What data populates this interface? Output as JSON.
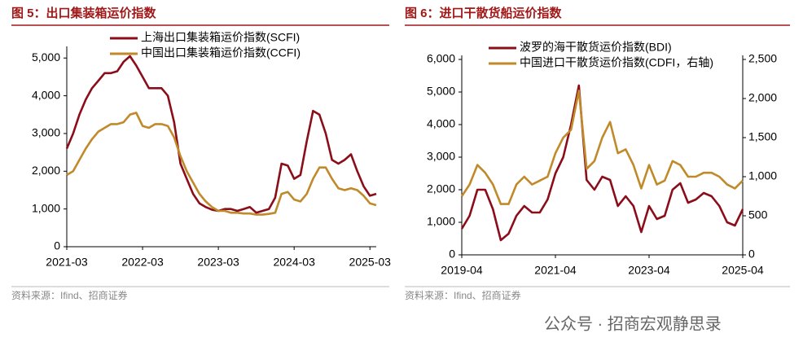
{
  "chart_data": [
    {
      "type": "line",
      "title": "图 5：出口集装箱运价指数",
      "source": "资料来源：Ifind、招商证券",
      "categories": [
        "2021-03",
        null,
        null,
        null,
        null,
        null,
        null,
        null,
        null,
        null,
        null,
        null,
        "2022-03",
        null,
        null,
        null,
        null,
        null,
        null,
        null,
        null,
        null,
        null,
        null,
        "2023-03",
        null,
        null,
        null,
        null,
        null,
        null,
        null,
        null,
        null,
        null,
        null,
        "2024-03",
        null,
        null,
        null,
        null,
        null,
        null,
        null,
        null,
        null,
        null,
        null,
        "2025-03",
        null
      ],
      "series": [
        {
          "name": "上海出口集装箱运价指数(SCFI)",
          "color": "#8b0d1a",
          "values": [
            2600,
            3000,
            3500,
            3900,
            4200,
            4400,
            4600,
            4600,
            4650,
            4900,
            5050,
            4800,
            4500,
            4200,
            4200,
            4200,
            4000,
            3300,
            2200,
            1800,
            1400,
            1150,
            1050,
            980,
            950,
            1000,
            1000,
            950,
            1000,
            1050,
            900,
            950,
            1000,
            1300,
            2200,
            2150,
            1800,
            1900,
            2800,
            3600,
            3500,
            3000,
            2300,
            2200,
            2300,
            2450,
            2000,
            1600,
            1350,
            1400
          ]
        },
        {
          "name": "中国出口集装箱运价指数(CCFI)",
          "color": "#c08a2a",
          "values": [
            1900,
            2000,
            2300,
            2600,
            2850,
            3050,
            3150,
            3250,
            3250,
            3300,
            3500,
            3550,
            3200,
            3150,
            3250,
            3250,
            3200,
            2900,
            2400,
            2000,
            1700,
            1400,
            1200,
            1050,
            950,
            950,
            900,
            900,
            880,
            880,
            850,
            850,
            870,
            900,
            1400,
            1450,
            1250,
            1200,
            1400,
            1800,
            2100,
            2100,
            1800,
            1550,
            1500,
            1550,
            1500,
            1350,
            1150,
            1100
          ]
        }
      ],
      "ylim": [
        0,
        5200
      ],
      "yticks": [
        0,
        {
          "value": 1000,
          "label": "1,000"
        },
        {
          "value": 2000,
          "label": "2,000"
        },
        {
          "value": 3000,
          "label": "3,000"
        },
        {
          "value": 4000,
          "label": "4,000"
        },
        {
          "value": 5000,
          "label": "5,000"
        }
      ]
    },
    {
      "type": "line",
      "title": "图 6：进口干散货船运价指数",
      "source": "资料来源：Ifind、招商证券",
      "categories": [
        "2019-04",
        null,
        null,
        null,
        null,
        null,
        null,
        null,
        null,
        null,
        null,
        null,
        "2021-04",
        null,
        null,
        null,
        null,
        null,
        null,
        null,
        null,
        null,
        null,
        null,
        "2023-04",
        null,
        null,
        null,
        null,
        null,
        null,
        null,
        null,
        null,
        null,
        null,
        "2025-04"
      ],
      "series": [
        {
          "name": "波罗的海干散货运价指数(BDI)",
          "color": "#8b0d1a",
          "values": [
            800,
            1200,
            2000,
            2000,
            1400,
            450,
            650,
            1200,
            1500,
            1300,
            1300,
            1700,
            2500,
            3000,
            4000,
            5200,
            2300,
            2000,
            2400,
            2300,
            1500,
            1800,
            1500,
            700,
            1500,
            1100,
            1200,
            2000,
            2200,
            1600,
            1700,
            1900,
            1800,
            1500,
            1000,
            900,
            1400
          ]
        },
        {
          "name": "中国进口干散货运价指数(CDFI，右轴)",
          "color": "#c08a2a",
          "axis": "y2",
          "values": [
            750,
            900,
            1150,
            1050,
            900,
            650,
            650,
            900,
            1000,
            900,
            950,
            1000,
            1300,
            1500,
            1600,
            2100,
            1100,
            1200,
            1500,
            1700,
            1300,
            1350,
            1150,
            850,
            1150,
            900,
            950,
            1200,
            1150,
            1000,
            1000,
            1050,
            1050,
            1000,
            900,
            850,
            950
          ]
        }
      ],
      "ylim": [
        0,
        6000
      ],
      "yticks": [
        0,
        {
          "value": 1000,
          "label": "1,000"
        },
        {
          "value": 2000,
          "label": "2,000"
        },
        {
          "value": 3000,
          "label": "3,000"
        },
        {
          "value": 4000,
          "label": "4,000"
        },
        {
          "value": 5000,
          "label": "5,000"
        },
        {
          "value": 6000,
          "label": "6,000"
        }
      ],
      "y2lim": [
        0,
        2500
      ],
      "y2ticks": [
        0,
        500,
        {
          "value": 1000,
          "label": "1,000"
        },
        {
          "value": 1500,
          "label": "1,500"
        },
        {
          "value": 2000,
          "label": "2,000"
        },
        {
          "value": 2500,
          "label": "2,500"
        }
      ]
    }
  ],
  "watermark": "公众号 · 招商宏观静思录"
}
